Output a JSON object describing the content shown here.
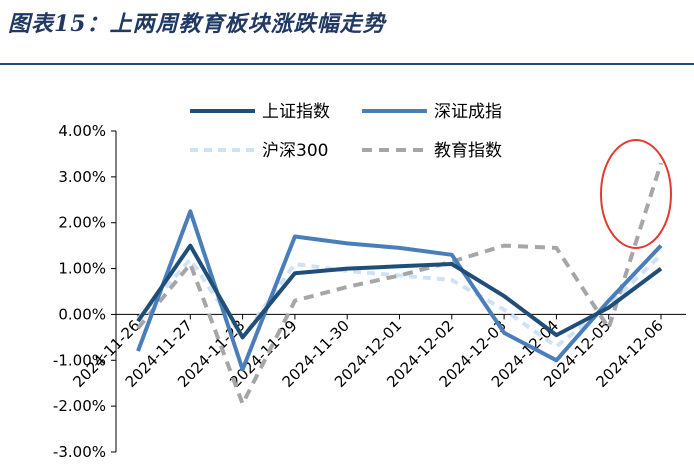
{
  "figure_title": "图表15：上两周教育板块涨跌幅走势",
  "chart_data": {
    "type": "line",
    "title": "",
    "xlabel": "",
    "ylabel": "",
    "categories": [
      "2024-11-26",
      "2024-11-27",
      "2024-11-28",
      "2024-11-29",
      "2024-11-30",
      "2024-12-01",
      "2024-12-02",
      "2024-12-03",
      "2024-12-04",
      "2024-12-05",
      "2024-12-06"
    ],
    "y_ticks": [
      "4.00%",
      "3.00%",
      "2.00%",
      "1.00%",
      "0.00%",
      "-1.00%",
      "-2.00%",
      "-3.00%"
    ],
    "ylim": [
      -3,
      4
    ],
    "grid": false,
    "legend_position": "top",
    "series": [
      {
        "name": "上证指数",
        "color": "#1f4e79",
        "dash": "solid",
        "width": 4,
        "values": [
          -0.15,
          1.5,
          -0.5,
          0.9,
          1.0,
          1.05,
          1.1,
          0.4,
          -0.45,
          0.15,
          1.0
        ]
      },
      {
        "name": "深证成指",
        "color": "#4a7ebb",
        "dash": "solid",
        "width": 4,
        "values": [
          -0.8,
          2.25,
          -1.2,
          1.7,
          1.55,
          1.45,
          1.3,
          -0.4,
          -1.0,
          0.3,
          1.5
        ]
      },
      {
        "name": "沪深300",
        "color": "#cfe2f3",
        "dash": "8,6",
        "width": 4,
        "values": [
          -0.1,
          1.2,
          -0.5,
          1.1,
          0.95,
          0.85,
          0.75,
          0.1,
          -0.7,
          0.2,
          1.3
        ]
      },
      {
        "name": "教育指数",
        "color": "#a6a6a6",
        "dash": "10,7",
        "width": 4,
        "values": [
          -0.3,
          1.1,
          -1.95,
          0.3,
          0.6,
          0.85,
          1.15,
          1.5,
          1.45,
          -0.3,
          3.3
        ]
      }
    ],
    "annotation": {
      "shape": "ellipse",
      "color": "#e03c31"
    }
  }
}
